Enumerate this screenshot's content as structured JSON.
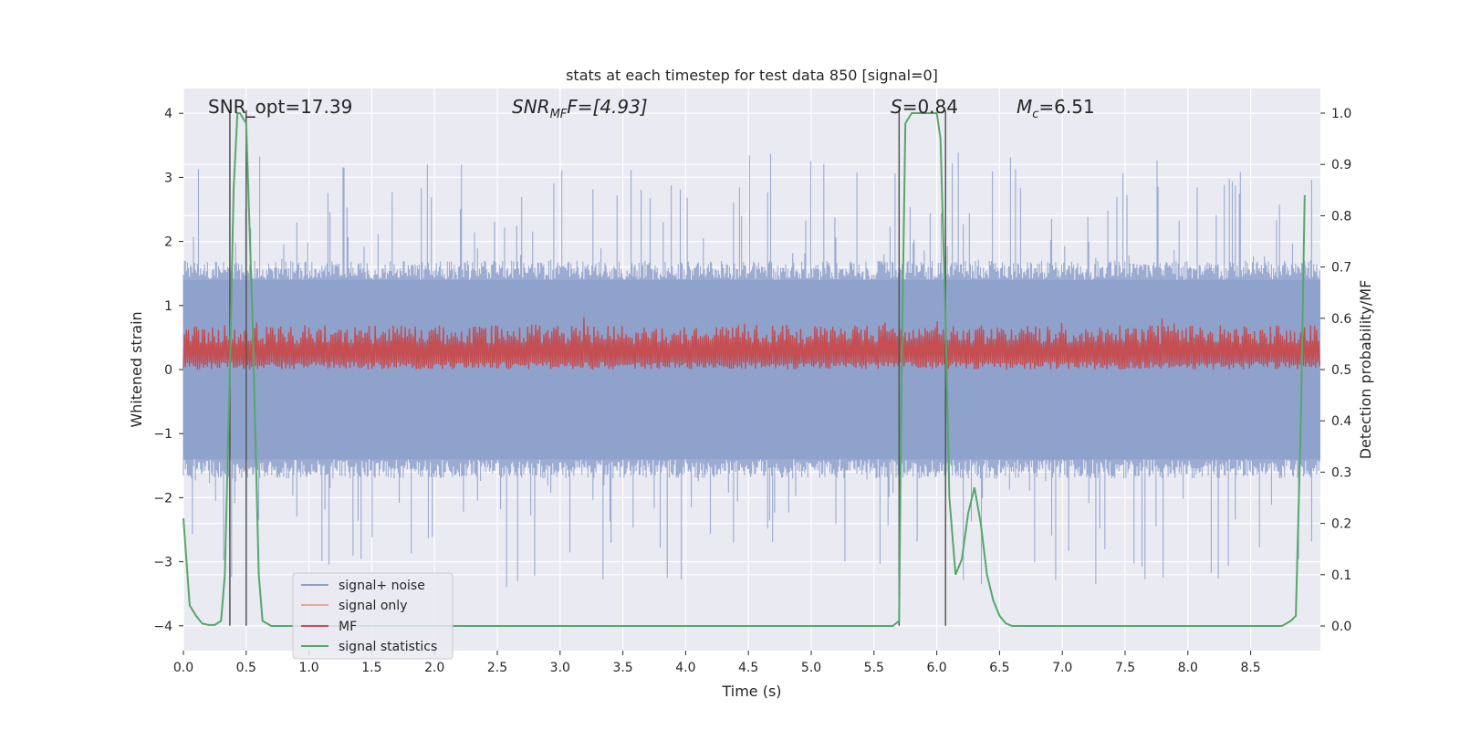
{
  "chart_data": {
    "type": "line",
    "title": "stats at each timestep for test data 850 [signal=0]",
    "xlabel": "Time (s)",
    "ylabel": "Whitened strain",
    "ylabel_right": "Detection probability/MF",
    "xlim": [
      0.0,
      9.0
    ],
    "ylim": [
      -4.4,
      4.4
    ],
    "ylim_right": [
      -0.05,
      1.05
    ],
    "x_ticks": [
      "0.0",
      "0.5",
      "1.0",
      "1.5",
      "2.0",
      "2.5",
      "3.0",
      "3.5",
      "4.0",
      "4.5",
      "5.0",
      "5.5",
      "6.0",
      "6.5",
      "7.0",
      "7.5",
      "8.0",
      "8.5"
    ],
    "y_ticks": [
      "−4",
      "−3",
      "−2",
      "−1",
      "0",
      "1",
      "2",
      "3",
      "4"
    ],
    "y_ticks_right": [
      "0.0",
      "0.1",
      "0.2",
      "0.3",
      "0.4",
      "0.5",
      "0.6",
      "0.7",
      "0.8",
      "0.9",
      "1.0"
    ],
    "grid": true,
    "legend_position": "lower-left",
    "legend": [
      {
        "name": "signal+ noise",
        "color": "#8da0cb"
      },
      {
        "name": "signal only",
        "color": "#e8a98f"
      },
      {
        "name": "MF",
        "color": "#c44e52"
      },
      {
        "name": "signal statistics",
        "color": "#55a868"
      }
    ],
    "annotations": {
      "snr_opt": "SNR_opt=17.39",
      "snr_mf_base": "SNR",
      "snr_mf_sub": "MF",
      "snr_mf_rest": "F=[4.93]",
      "s_base": "S",
      "s_rest": "=0.84",
      "mc_base": "M",
      "mc_sub": "c",
      "mc_rest": "=6.51"
    },
    "vertical_lines_x": [
      0.37,
      0.5,
      5.7,
      6.07
    ],
    "series": [
      {
        "name": "signal+ noise",
        "color": "#8da0cb",
        "envelope_typical": [
          -1.6,
          1.6
        ],
        "envelope_peak": [
          -3.4,
          3.4
        ]
      },
      {
        "name": "MF",
        "color": "#c44e52",
        "band_typical": [
          0.0,
          0.7
        ]
      },
      {
        "name": "signal statistics",
        "color": "#55a868",
        "x": [
          0.0,
          0.05,
          0.1,
          0.15,
          0.2,
          0.25,
          0.3,
          0.33,
          0.37,
          0.4,
          0.43,
          0.45,
          0.5,
          0.55,
          0.6,
          0.63,
          0.7,
          1.0,
          2.0,
          3.0,
          4.0,
          5.0,
          5.6,
          5.65,
          5.7,
          5.72,
          5.75,
          5.8,
          5.85,
          5.9,
          6.0,
          6.03,
          6.07,
          6.1,
          6.15,
          6.2,
          6.25,
          6.3,
          6.35,
          6.4,
          6.45,
          6.5,
          6.55,
          6.6,
          6.7,
          7.0,
          8.0,
          8.75,
          8.82,
          8.86,
          8.9,
          8.93
        ],
        "values": [
          0.21,
          0.04,
          0.02,
          0.005,
          0.002,
          0.002,
          0.01,
          0.1,
          0.5,
          0.85,
          1.0,
          1.0,
          0.98,
          0.6,
          0.1,
          0.01,
          0.0,
          0.0,
          0.0,
          0.0,
          0.0,
          0.0,
          0.0,
          0.0,
          0.01,
          0.5,
          0.98,
          1.0,
          1.0,
          1.0,
          1.0,
          0.95,
          0.6,
          0.25,
          0.1,
          0.13,
          0.22,
          0.27,
          0.2,
          0.1,
          0.05,
          0.02,
          0.005,
          0.0,
          0.0,
          0.0,
          0.0,
          0.0,
          0.01,
          0.02,
          0.4,
          0.84
        ]
      }
    ]
  }
}
